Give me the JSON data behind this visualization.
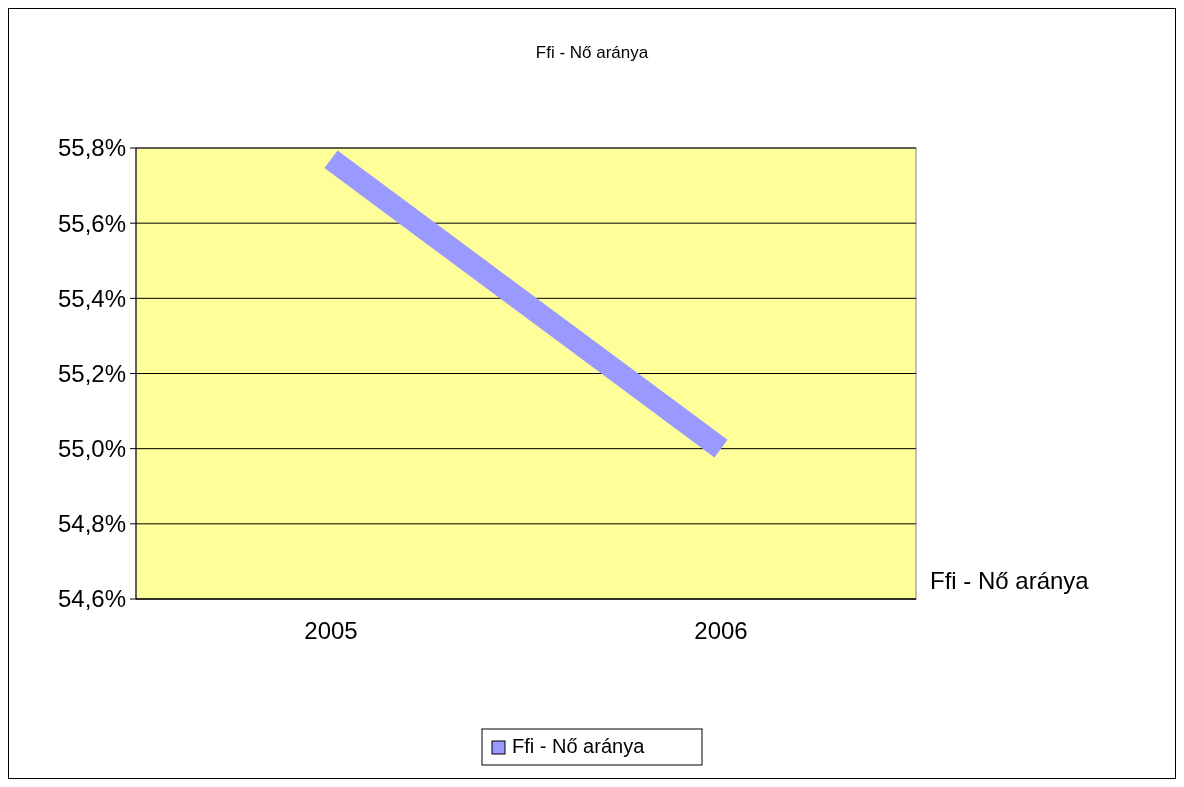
{
  "chart_data": {
    "type": "line",
    "title": "Ffi - Nő aránya",
    "categories": [
      "2005",
      "2006"
    ],
    "series": [
      {
        "name": "Ffi - Nő aránya",
        "color": "#9999ff",
        "values": [
          55.77,
          55.0
        ]
      }
    ],
    "ylim": [
      54.6,
      55.8
    ],
    "yticks": [
      {
        "value": 54.6,
        "label": "54,6%"
      },
      {
        "value": 54.8,
        "label": "54,8%"
      },
      {
        "value": 55.0,
        "label": "55,0%"
      },
      {
        "value": 55.2,
        "label": "55,2%"
      },
      {
        "value": 55.4,
        "label": "55,4%"
      },
      {
        "value": 55.6,
        "label": "55,6%"
      },
      {
        "value": 55.8,
        "label": "55,8%"
      }
    ],
    "grid": "y",
    "legend": "bottom",
    "marker": "none",
    "line_style": "solid",
    "annotations": [
      "Ffi - Nő aránya"
    ]
  }
}
